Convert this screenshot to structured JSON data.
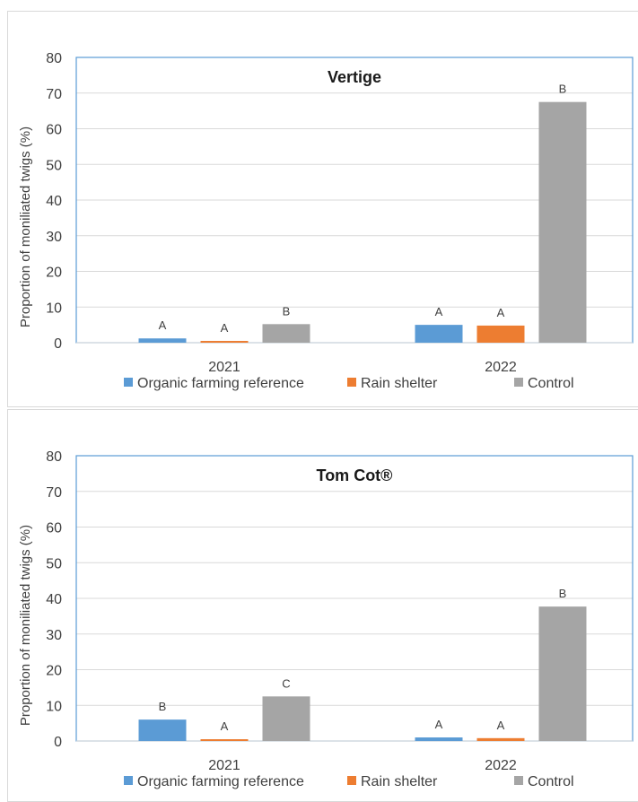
{
  "chart_data": [
    {
      "type": "bar",
      "title": "Vertige",
      "xlabel": "",
      "ylabel": "Proportion of moniliated twigs (%)",
      "ylim": [
        0,
        80
      ],
      "yticks": [
        0,
        10,
        20,
        30,
        40,
        50,
        60,
        70,
        80
      ],
      "categories": [
        "2021",
        "2022"
      ],
      "grid": true,
      "legend": "bottom",
      "series": [
        {
          "name": "Organic farming reference",
          "color": "#5b9bd5",
          "values": [
            1.2,
            5.0
          ],
          "labels": [
            "A",
            "A"
          ]
        },
        {
          "name": "Rain shelter",
          "color": "#ed7d31",
          "values": [
            0.5,
            4.8
          ],
          "labels": [
            "A",
            "A"
          ]
        },
        {
          "name": "Control",
          "color": "#a5a5a5",
          "values": [
            5.2,
            67.5
          ],
          "labels": [
            "B",
            "B"
          ]
        }
      ]
    },
    {
      "type": "bar",
      "title": "Tom Cot®",
      "xlabel": "",
      "ylabel": "Proportion of moniliated twigs (%)",
      "ylim": [
        0,
        80
      ],
      "yticks": [
        0,
        10,
        20,
        30,
        40,
        50,
        60,
        70,
        80
      ],
      "categories": [
        "2021",
        "2022"
      ],
      "grid": true,
      "legend": "bottom",
      "series": [
        {
          "name": "Organic farming reference",
          "color": "#5b9bd5",
          "values": [
            6.0,
            1.0
          ],
          "labels": [
            "B",
            "A"
          ]
        },
        {
          "name": "Rain shelter",
          "color": "#ed7d31",
          "values": [
            0.5,
            0.8
          ],
          "labels": [
            "A",
            "A"
          ]
        },
        {
          "name": "Control",
          "color": "#a5a5a5",
          "values": [
            12.5,
            37.7
          ],
          "labels": [
            "C",
            "B"
          ]
        }
      ]
    }
  ]
}
